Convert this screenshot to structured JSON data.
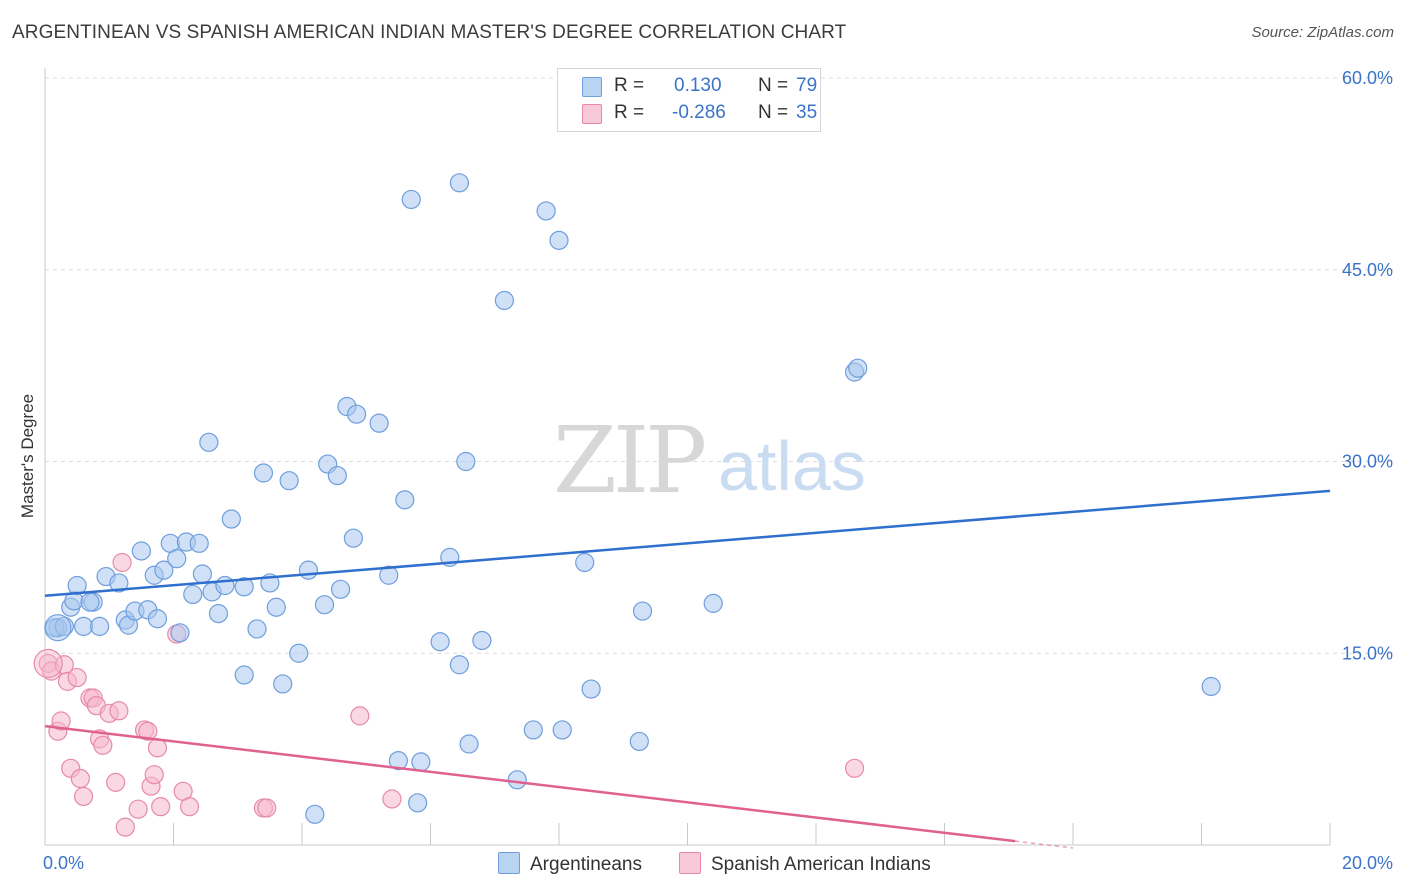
{
  "title": "ARGENTINEAN VS SPANISH AMERICAN INDIAN MASTER'S DEGREE CORRELATION CHART",
  "source": "Source: ZipAtlas.com",
  "watermark": {
    "zip": "ZIP",
    "atlas": "atlas"
  },
  "legend": {
    "series1": {
      "r_label": "R =",
      "r_value": "0.130",
      "n_label": "N =",
      "n_value": "79"
    },
    "series2": {
      "r_label": "R =",
      "r_value": "-0.286",
      "n_label": "N =",
      "n_value": "35"
    }
  },
  "bottom_legend": {
    "series1": "Argentineans",
    "series2": "Spanish American Indians"
  },
  "colors": {
    "blue_fill": "#a9c8f0",
    "blue_stroke": "#6e9edc",
    "blue_line": "#2f6fcd",
    "pink_fill": "#f5b8cc",
    "pink_stroke": "#e68aa8",
    "pink_line": "#e0608e",
    "axis_label": "#3b73c8",
    "grid": "#dcdcdc"
  },
  "chart_data": {
    "type": "scatter",
    "title": "ARGENTINEAN VS SPANISH AMERICAN INDIAN MASTER'S DEGREE CORRELATION CHART",
    "xlabel": "",
    "ylabel": "Master's Degree",
    "xlim": [
      0,
      20
    ],
    "ylim": [
      0,
      60
    ],
    "x_tick_labels": [
      "0.0%",
      "20.0%"
    ],
    "y_ticks": [
      15,
      30,
      45,
      60
    ],
    "y_tick_labels": [
      "15.0%",
      "30.0%",
      "45.0%",
      "60.0%"
    ],
    "series": [
      {
        "name": "Argentineans",
        "r": 0.13,
        "n": 79,
        "trend": {
          "x": [
            0,
            20
          ],
          "y": [
            19.5,
            27.7
          ]
        },
        "points": [
          [
            0.2,
            17.0
          ],
          [
            0.2,
            17.0
          ],
          [
            0.4,
            18.6
          ],
          [
            0.45,
            19.1
          ],
          [
            0.5,
            20.3
          ],
          [
            0.6,
            17.1
          ],
          [
            0.75,
            19.0
          ],
          [
            0.85,
            17.1
          ],
          [
            0.95,
            21.0
          ],
          [
            1.15,
            20.5
          ],
          [
            1.25,
            17.6
          ],
          [
            1.3,
            17.2
          ],
          [
            1.4,
            18.3
          ],
          [
            1.5,
            23.0
          ],
          [
            1.6,
            18.4
          ],
          [
            1.7,
            21.1
          ],
          [
            1.75,
            17.7
          ],
          [
            1.85,
            21.5
          ],
          [
            1.95,
            23.6
          ],
          [
            2.05,
            22.4
          ],
          [
            2.2,
            23.7
          ],
          [
            2.1,
            16.6
          ],
          [
            2.3,
            19.6
          ],
          [
            2.4,
            23.6
          ],
          [
            2.45,
            21.2
          ],
          [
            2.6,
            19.8
          ],
          [
            2.55,
            31.5
          ],
          [
            2.7,
            18.1
          ],
          [
            2.8,
            20.3
          ],
          [
            2.9,
            25.5
          ],
          [
            3.1,
            20.2
          ],
          [
            3.1,
            13.3
          ],
          [
            3.3,
            16.9
          ],
          [
            3.4,
            29.1
          ],
          [
            3.5,
            20.5
          ],
          [
            3.6,
            18.6
          ],
          [
            3.7,
            12.6
          ],
          [
            3.8,
            28.5
          ],
          [
            3.95,
            15.0
          ],
          [
            4.1,
            21.5
          ],
          [
            4.2,
            2.4
          ],
          [
            4.35,
            18.8
          ],
          [
            4.4,
            29.8
          ],
          [
            4.55,
            28.9
          ],
          [
            4.6,
            20.0
          ],
          [
            4.7,
            34.3
          ],
          [
            4.8,
            24.0
          ],
          [
            4.85,
            33.7
          ],
          [
            5.2,
            33.0
          ],
          [
            5.35,
            21.1
          ],
          [
            5.5,
            6.6
          ],
          [
            5.6,
            27.0
          ],
          [
            5.7,
            50.5
          ],
          [
            5.8,
            3.3
          ],
          [
            5.85,
            6.5
          ],
          [
            6.15,
            15.9
          ],
          [
            6.3,
            22.5
          ],
          [
            6.45,
            51.8
          ],
          [
            6.45,
            14.1
          ],
          [
            6.55,
            30.0
          ],
          [
            6.6,
            7.9
          ],
          [
            6.8,
            16.0
          ],
          [
            7.15,
            42.6
          ],
          [
            7.35,
            5.1
          ],
          [
            7.6,
            9.0
          ],
          [
            7.8,
            49.6
          ],
          [
            8.0,
            47.3
          ],
          [
            8.05,
            9.0
          ],
          [
            8.4,
            22.1
          ],
          [
            8.5,
            12.2
          ],
          [
            9.25,
            8.1
          ],
          [
            9.3,
            18.3
          ],
          [
            10.4,
            18.9
          ],
          [
            12.6,
            37.0
          ],
          [
            12.65,
            37.3
          ],
          [
            18.15,
            12.4
          ],
          [
            0.15,
            17.0
          ],
          [
            0.3,
            17.1
          ],
          [
            0.7,
            19.0
          ]
        ]
      },
      {
        "name": "Spanish American Indians",
        "r": -0.286,
        "n": 35,
        "trend": {
          "x": [
            0,
            15.1
          ],
          "y": [
            9.3,
            0.3
          ]
        },
        "points": [
          [
            0.05,
            14.2
          ],
          [
            0.1,
            13.6
          ],
          [
            0.2,
            8.9
          ],
          [
            0.25,
            9.7
          ],
          [
            0.3,
            14.1
          ],
          [
            0.35,
            12.8
          ],
          [
            0.4,
            6.0
          ],
          [
            0.5,
            13.1
          ],
          [
            0.55,
            5.2
          ],
          [
            0.6,
            3.8
          ],
          [
            0.7,
            11.5
          ],
          [
            0.75,
            11.5
          ],
          [
            0.8,
            10.9
          ],
          [
            0.85,
            8.3
          ],
          [
            0.9,
            7.8
          ],
          [
            1.0,
            10.3
          ],
          [
            1.1,
            4.9
          ],
          [
            1.15,
            10.5
          ],
          [
            1.2,
            22.1
          ],
          [
            1.25,
            1.4
          ],
          [
            1.45,
            2.8
          ],
          [
            1.55,
            9.0
          ],
          [
            1.6,
            8.9
          ],
          [
            1.65,
            4.6
          ],
          [
            1.7,
            5.5
          ],
          [
            1.75,
            7.6
          ],
          [
            1.8,
            3.0
          ],
          [
            2.05,
            16.5
          ],
          [
            2.15,
            4.2
          ],
          [
            2.25,
            3.0
          ],
          [
            3.4,
            2.9
          ],
          [
            3.45,
            2.9
          ],
          [
            4.9,
            10.1
          ],
          [
            5.4,
            3.6
          ],
          [
            12.6,
            6.0
          ]
        ]
      }
    ]
  }
}
